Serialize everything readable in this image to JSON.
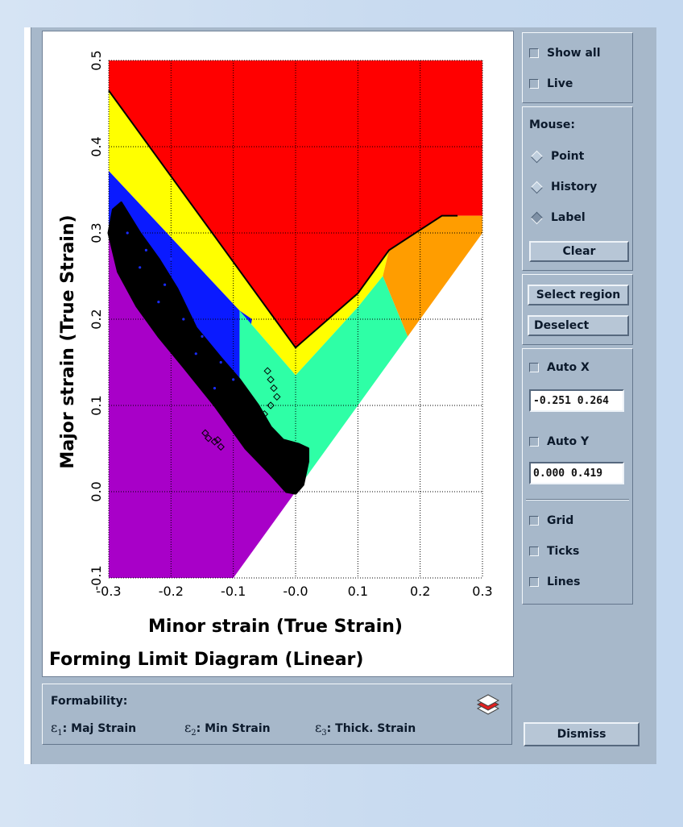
{
  "colors": {
    "red": "#ff0000",
    "yellow": "#ffff00",
    "blue": "#0a1aff",
    "purple": "#a800c8",
    "green": "#2effa6",
    "orange": "#ff9d00",
    "white": "#ffffff",
    "points": "#000000"
  },
  "chart_data": {
    "type": "scatter",
    "title": "Forming Limit Diagram (Linear)",
    "xlabel": "Minor strain (True Strain)",
    "ylabel": "Major strain (True Strain)",
    "xlim": [
      -0.3,
      0.3
    ],
    "ylim": [
      -0.1,
      0.5
    ],
    "xticks": [
      "-0.3",
      "-0.2",
      "-0.1",
      "-0.0",
      "0.1",
      "0.2",
      "0.3"
    ],
    "yticks": [
      "-0.1",
      "0.0",
      "0.1",
      "0.2",
      "0.3",
      "0.4",
      "0.5"
    ],
    "grid": true,
    "forming_limit_curve": [
      [
        -0.3,
        0.465
      ],
      [
        0.0,
        0.167
      ],
      [
        0.1,
        0.23
      ],
      [
        0.15,
        0.28
      ],
      [
        0.235,
        0.32
      ],
      [
        0.26,
        0.32
      ]
    ],
    "regions": [
      {
        "color": "red",
        "polygon": [
          [
            -0.3,
            0.5
          ],
          [
            0.3,
            0.5
          ],
          [
            0.3,
            0.32
          ],
          [
            0.235,
            0.32
          ],
          [
            0.15,
            0.28
          ],
          [
            0.1,
            0.23
          ],
          [
            0.0,
            0.167
          ],
          [
            -0.3,
            0.465
          ]
        ]
      },
      {
        "color": "yellow",
        "polygon": [
          [
            -0.3,
            0.465
          ],
          [
            0.0,
            0.167
          ],
          [
            0.1,
            0.23
          ],
          [
            0.15,
            0.28
          ],
          [
            0.14,
            0.25
          ],
          [
            0.1,
            0.214
          ],
          [
            0.0,
            0.135
          ],
          [
            -0.09,
            0.21
          ],
          [
            -0.3,
            0.372
          ]
        ]
      },
      {
        "color": "blue",
        "polygon": [
          [
            -0.3,
            0.372
          ],
          [
            -0.09,
            0.21
          ],
          [
            -0.07,
            0.2
          ],
          [
            -0.09,
            0.12
          ],
          [
            -0.3,
            0.3
          ]
        ]
      },
      {
        "color": "green",
        "polygon": [
          [
            -0.09,
            0.21
          ],
          [
            0.0,
            0.135
          ],
          [
            0.1,
            0.214
          ],
          [
            0.14,
            0.25
          ],
          [
            0.18,
            0.18
          ],
          [
            0.0,
            0.0
          ],
          [
            -0.09,
            0.12
          ]
        ]
      },
      {
        "color": "orange",
        "polygon": [
          [
            0.14,
            0.25
          ],
          [
            0.15,
            0.28
          ],
          [
            0.235,
            0.32
          ],
          [
            0.3,
            0.32
          ],
          [
            0.3,
            0.3
          ],
          [
            0.18,
            0.18
          ]
        ]
      },
      {
        "color": "purple",
        "polygon": [
          [
            -0.3,
            0.3
          ],
          [
            -0.3,
            -0.1
          ],
          [
            -0.1,
            -0.1
          ],
          [
            0.0,
            0.0
          ]
        ]
      }
    ],
    "point_cloud": [
      [
        -0.293,
        0.327
      ],
      [
        -0.28,
        0.335
      ],
      [
        -0.25,
        0.3
      ],
      [
        -0.22,
        0.27
      ],
      [
        -0.19,
        0.235
      ],
      [
        -0.16,
        0.19
      ],
      [
        -0.12,
        0.155
      ],
      [
        -0.09,
        0.13
      ],
      [
        -0.06,
        0.1
      ],
      [
        -0.04,
        0.075
      ],
      [
        -0.02,
        0.06
      ],
      [
        0.005,
        0.055
      ],
      [
        0.02,
        0.05
      ],
      [
        0.02,
        0.035
      ],
      [
        0.012,
        0.008
      ],
      [
        0.0,
        -0.002
      ],
      [
        -0.015,
        0.0
      ],
      [
        -0.04,
        0.02
      ],
      [
        -0.08,
        0.05
      ],
      [
        -0.13,
        0.1
      ],
      [
        -0.18,
        0.145
      ],
      [
        -0.22,
        0.18
      ],
      [
        -0.255,
        0.215
      ],
      [
        -0.285,
        0.255
      ],
      [
        -0.3,
        0.3
      ]
    ],
    "outlier_markers": [
      [
        -0.045,
        0.14
      ],
      [
        -0.04,
        0.13
      ],
      [
        -0.035,
        0.12
      ],
      [
        -0.03,
        0.11
      ],
      [
        -0.04,
        0.1
      ],
      [
        -0.05,
        0.09
      ],
      [
        -0.145,
        0.068
      ],
      [
        -0.14,
        0.062
      ],
      [
        -0.13,
        0.058
      ],
      [
        -0.12,
        0.052
      ],
      [
        -0.125,
        0.06
      ]
    ]
  },
  "sidebar": {
    "show_all": "Show all",
    "live": "Live",
    "mouse_label": "Mouse:",
    "point": "Point",
    "history": "History",
    "label": "Label",
    "clear": "Clear",
    "select_region": "Select region",
    "deselect": "Deselect",
    "auto_x": "Auto X",
    "x_range": "-0.251 0.264",
    "auto_y": "Auto Y",
    "y_range": "0.000 0.419",
    "grid": "Grid",
    "ticks": "Ticks",
    "lines": "Lines",
    "dismiss": "Dismiss"
  },
  "formability": {
    "title": "Formability:",
    "e1": "Maj Strain",
    "e2": "Min Strain",
    "e3": "Thick. Strain",
    "layers_icon": "layers-icon"
  }
}
